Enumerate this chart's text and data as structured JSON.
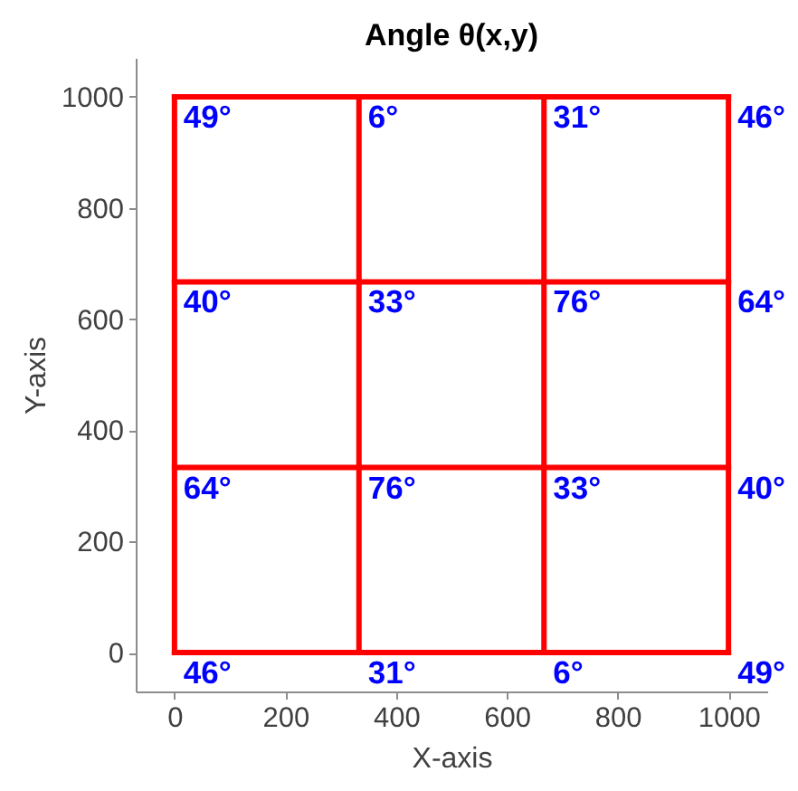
{
  "chart_data": {
    "type": "line",
    "title": "Angle θ(x,y)",
    "xlabel": "X-axis",
    "ylabel": "Y-axis",
    "series": [
      {
        "color": "#ff0000",
        "x": [
          0,
          1000
        ],
        "values": [
          0,
          0
        ]
      },
      {
        "color": "#ff0000",
        "x": [
          0,
          1000
        ],
        "values": [
          333,
          333
        ]
      },
      {
        "color": "#ff0000",
        "x": [
          0,
          1000
        ],
        "values": [
          667,
          667
        ]
      },
      {
        "color": "#ff0000",
        "x": [
          0,
          1000
        ],
        "values": [
          1000,
          1000
        ]
      },
      {
        "color": "#ff0000",
        "x": [
          0,
          0
        ],
        "values": [
          0,
          1000
        ]
      },
      {
        "color": "#ff0000",
        "x": [
          333,
          333
        ],
        "values": [
          0,
          1000
        ]
      },
      {
        "color": "#ff0000",
        "x": [
          667,
          667
        ],
        "values": [
          0,
          1000
        ]
      },
      {
        "color": "#ff0000",
        "x": [
          1000,
          1000
        ],
        "values": [
          0,
          1000
        ]
      }
    ],
    "xlim": [
      -70,
      1070
    ],
    "ylim": [
      -70,
      1070
    ],
    "xticks": [
      0,
      200,
      400,
      600,
      800,
      1000
    ],
    "yticks": [
      0,
      200,
      400,
      600,
      800,
      1000
    ],
    "annotations": [
      {
        "text": "49°",
        "x": 0,
        "y": 1000
      },
      {
        "text": "6°",
        "x": 333,
        "y": 1000
      },
      {
        "text": "31°",
        "x": 667,
        "y": 1000
      },
      {
        "text": "46°",
        "x": 1000,
        "y": 1000
      },
      {
        "text": "40°",
        "x": 0,
        "y": 667
      },
      {
        "text": "33°",
        "x": 333,
        "y": 667
      },
      {
        "text": "76°",
        "x": 667,
        "y": 667
      },
      {
        "text": "64°",
        "x": 1000,
        "y": 667
      },
      {
        "text": "64°",
        "x": 0,
        "y": 333
      },
      {
        "text": "76°",
        "x": 333,
        "y": 333
      },
      {
        "text": "33°",
        "x": 667,
        "y": 333
      },
      {
        "text": "40°",
        "x": 1000,
        "y": 333
      },
      {
        "text": "46°",
        "x": 0,
        "y": 0
      },
      {
        "text": "31°",
        "x": 333,
        "y": 0
      },
      {
        "text": "6°",
        "x": 667,
        "y": 0
      },
      {
        "text": "49°",
        "x": 1000,
        "y": 0
      }
    ]
  }
}
